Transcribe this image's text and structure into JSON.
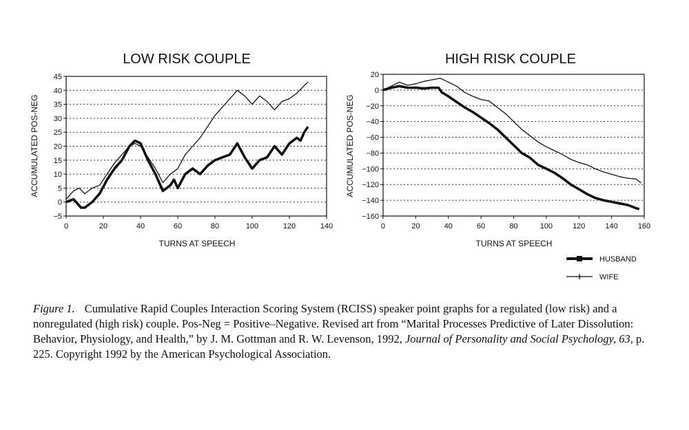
{
  "chart_data": [
    {
      "type": "line",
      "title": "LOW RISK COUPLE",
      "xlabel": "TURNS AT SPEECH",
      "ylabel": "ACCUMULATED POS-NEG",
      "xlim": [
        0,
        140
      ],
      "ylim": [
        -5,
        45
      ],
      "xticks": [
        "0",
        "20",
        "40",
        "60",
        "80",
        "100",
        "120",
        "140"
      ],
      "yticks": [
        "-5",
        "0",
        "5",
        "10",
        "15",
        "20",
        "25",
        "30",
        "35",
        "40",
        "45"
      ],
      "grid": "horizontal dashed",
      "series": [
        {
          "name": "HUSBAND",
          "x": [
            0,
            4,
            8,
            10,
            14,
            18,
            22,
            26,
            30,
            34,
            37,
            40,
            44,
            48,
            52,
            56,
            58,
            60,
            64,
            68,
            72,
            76,
            80,
            84,
            88,
            92,
            96,
            100,
            104,
            108,
            112,
            116,
            120,
            124,
            126,
            128,
            130
          ],
          "y": [
            0,
            1,
            -2,
            -2,
            0,
            3,
            8,
            12,
            15,
            20,
            22,
            21,
            15,
            10,
            4,
            6,
            8,
            5,
            10,
            12,
            10,
            13,
            15,
            16,
            17,
            21,
            16,
            12,
            15,
            16,
            20,
            17,
            21,
            23,
            22,
            25,
            27
          ]
        },
        {
          "name": "WIFE",
          "x": [
            0,
            4,
            7,
            10,
            14,
            18,
            22,
            26,
            30,
            34,
            37,
            40,
            44,
            48,
            52,
            56,
            60,
            64,
            68,
            72,
            76,
            80,
            84,
            88,
            92,
            96,
            100,
            104,
            108,
            112,
            116,
            120,
            124,
            127,
            130
          ],
          "y": [
            1,
            4,
            5,
            3,
            5,
            6,
            10,
            14,
            17,
            20,
            21,
            20,
            16,
            12,
            7,
            10,
            12,
            17,
            20,
            23,
            27,
            31,
            34,
            37,
            40,
            38,
            35,
            38,
            36,
            33,
            36,
            37,
            39,
            41,
            43
          ]
        }
      ]
    },
    {
      "type": "line",
      "title": "HIGH RISK COUPLE",
      "xlabel": "TURNS AT SPEECH",
      "ylabel": "ACCUMULATED POS-NEG",
      "xlim": [
        0,
        160
      ],
      "ylim": [
        -160,
        20
      ],
      "xticks": [
        "0",
        "20",
        "40",
        "60",
        "80",
        "100",
        "120",
        "140",
        "160"
      ],
      "yticks": [
        "20",
        "0",
        "-20",
        "-40",
        "-60",
        "-80",
        "-100",
        "-120",
        "-140",
        "-160"
      ],
      "grid": "horizontal dashed",
      "series": [
        {
          "name": "HUSBAND",
          "x": [
            0,
            5,
            10,
            15,
            20,
            25,
            30,
            34,
            36,
            40,
            45,
            50,
            55,
            60,
            65,
            70,
            75,
            80,
            85,
            90,
            95,
            100,
            105,
            110,
            115,
            120,
            125,
            130,
            135,
            140,
            145,
            150,
            155,
            157
          ],
          "y": [
            0,
            3,
            5,
            3,
            3,
            2,
            3,
            3,
            -3,
            -8,
            -15,
            -22,
            -28,
            -35,
            -42,
            -50,
            -60,
            -70,
            -80,
            -86,
            -95,
            -100,
            -105,
            -112,
            -120,
            -126,
            -132,
            -137,
            -140,
            -142,
            -144,
            -146,
            -150,
            -151
          ]
        },
        {
          "name": "WIFE",
          "x": [
            0,
            5,
            10,
            15,
            20,
            25,
            30,
            35,
            40,
            45,
            50,
            55,
            60,
            65,
            70,
            75,
            80,
            85,
            90,
            95,
            100,
            105,
            110,
            115,
            120,
            125,
            130,
            135,
            140,
            145,
            150,
            155,
            158
          ],
          "y": [
            0,
            5,
            10,
            6,
            8,
            11,
            13,
            15,
            10,
            5,
            -3,
            -8,
            -12,
            -14,
            -22,
            -30,
            -40,
            -50,
            -58,
            -66,
            -72,
            -77,
            -82,
            -88,
            -92,
            -95,
            -100,
            -104,
            -107,
            -110,
            -112,
            -113,
            -118
          ]
        }
      ]
    }
  ],
  "legend": {
    "husband": "HUSBAND",
    "wife": "WIFE"
  },
  "caption": {
    "label": "Figure 1.",
    "text_1": "Cumulative Rapid Couples Interaction Scoring System (RCISS) speaker point graphs for a regulated (low risk) and a nonregulated (high risk) couple. Pos-Neg = Positive–Negative. Revised art from “Marital Processes Predictive of Later Dissolution: Behavior, Physiology, and Health,” by J. M. Gottman and R. W. Levenson, 1992,",
    "journal": "Journal of Personality and Social Psychology, 63,",
    "text_2": "p. 225. Copyright 1992 by the American Psychological Association."
  },
  "colors": {
    "ink": "#111111",
    "grid": "#333333",
    "background": "#ffffff"
  }
}
